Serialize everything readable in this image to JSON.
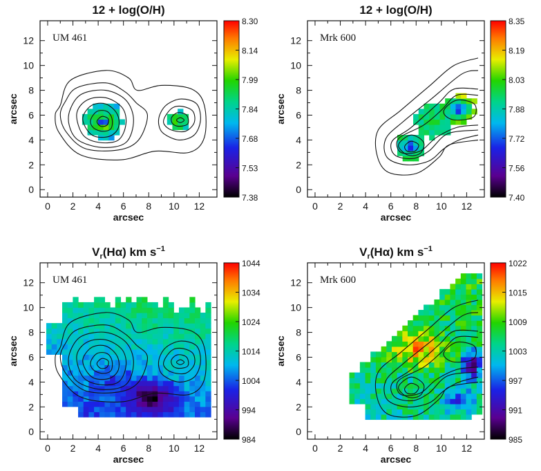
{
  "chart_data": [
    {
      "id": "p1",
      "type": "heatmap",
      "title": "12 + log(O/H)",
      "galaxy": "UM 461",
      "xlabel": "arcsec",
      "ylabel": "arcsec",
      "xlim": [
        -0.6,
        13.4
      ],
      "ylim": [
        -0.6,
        13.6
      ],
      "xticks": [
        "0",
        "2",
        "4",
        "6",
        "8",
        "10",
        "12"
      ],
      "yticks": [
        "0",
        "2",
        "4",
        "6",
        "8",
        "10",
        "12"
      ],
      "colorbar": {
        "min": 7.38,
        "max": 8.3,
        "ticks": [
          "8.30",
          "8.14",
          "7.99",
          "7.84",
          "7.68",
          "7.53",
          "7.38"
        ]
      },
      "blobs": [
        {
          "x": 4.4,
          "y": 5.5,
          "rx": 1.5,
          "ry": 1.3,
          "edge": 7.8,
          "core": 7.38,
          "ring": 7.99
        },
        {
          "x": 10.4,
          "y": 5.5,
          "rx": 0.9,
          "ry": 0.7,
          "edge": 7.84,
          "core": 7.84,
          "ring": 7.99
        }
      ],
      "contours": [
        [
          [
            1.0,
            6.8
          ],
          [
            1.8,
            8.8
          ],
          [
            4.6,
            9.6
          ],
          [
            6.4,
            9.0
          ],
          [
            7.1,
            8.0
          ],
          [
            9.0,
            8.4
          ],
          [
            11.4,
            8.1
          ],
          [
            12.4,
            6.8
          ],
          [
            12.4,
            4.2
          ],
          [
            11.2,
            3.0
          ],
          [
            8.5,
            3.1
          ],
          [
            5.8,
            2.4
          ],
          [
            2.6,
            2.8
          ],
          [
            0.9,
            4.6
          ],
          [
            0.6,
            6.0
          ]
        ],
        [
          [
            1.4,
            7.1
          ],
          [
            2.3,
            8.2
          ],
          [
            4.6,
            8.6
          ],
          [
            6.1,
            7.9
          ],
          [
            7.0,
            7.0
          ],
          [
            7.9,
            6.0
          ],
          [
            7.2,
            4.0
          ],
          [
            5.6,
            3.2
          ],
          [
            3.0,
            3.3
          ],
          [
            1.5,
            4.6
          ],
          [
            1.0,
            6.0
          ]
        ],
        [
          [
            1.8,
            6.5
          ],
          [
            2.7,
            7.7
          ],
          [
            4.6,
            8.0
          ],
          [
            6.2,
            7.2
          ],
          [
            6.8,
            5.6
          ],
          [
            6.2,
            3.8
          ],
          [
            4.3,
            3.4
          ],
          [
            2.4,
            4.0
          ],
          [
            1.7,
            5.2
          ]
        ],
        [
          [
            2.3,
            6.1
          ],
          [
            3.1,
            7.2
          ],
          [
            4.6,
            7.4
          ],
          [
            5.9,
            6.6
          ],
          [
            6.2,
            5.3
          ],
          [
            5.6,
            4.0
          ],
          [
            4.1,
            3.8
          ],
          [
            2.8,
            4.4
          ]
        ],
        [
          [
            2.8,
            5.9
          ],
          [
            3.5,
            6.8
          ],
          [
            4.6,
            6.9
          ],
          [
            5.5,
            6.1
          ],
          [
            5.6,
            5.0
          ],
          [
            4.9,
            4.3
          ],
          [
            3.7,
            4.3
          ],
          [
            3.0,
            5.0
          ]
        ],
        [
          [
            3.4,
            5.6
          ],
          [
            3.9,
            6.3
          ],
          [
            4.7,
            6.3
          ],
          [
            5.1,
            5.7
          ],
          [
            5.0,
            4.9
          ],
          [
            4.3,
            4.7
          ],
          [
            3.6,
            5.0
          ]
        ],
        [
          [
            3.9,
            5.5
          ],
          [
            4.3,
            5.9
          ],
          [
            4.8,
            5.7
          ],
          [
            4.7,
            5.2
          ],
          [
            4.2,
            5.1
          ]
        ],
        [
          [
            8.9,
            6.1
          ],
          [
            9.5,
            6.9
          ],
          [
            10.6,
            7.3
          ],
          [
            11.8,
            6.9
          ],
          [
            12.1,
            5.6
          ],
          [
            11.6,
            4.4
          ],
          [
            10.4,
            4.0
          ],
          [
            9.2,
            4.5
          ],
          [
            8.8,
            5.2
          ]
        ],
        [
          [
            9.3,
            5.9
          ],
          [
            9.9,
            6.6
          ],
          [
            10.7,
            6.7
          ],
          [
            11.5,
            6.3
          ],
          [
            11.6,
            5.4
          ],
          [
            10.9,
            4.7
          ],
          [
            9.8,
            4.8
          ],
          [
            9.2,
            5.3
          ]
        ],
        [
          [
            9.8,
            5.8
          ],
          [
            10.3,
            6.2
          ],
          [
            11.0,
            6.0
          ],
          [
            11.1,
            5.3
          ],
          [
            10.4,
            5.1
          ],
          [
            9.9,
            5.3
          ]
        ],
        [
          [
            10.2,
            5.6
          ],
          [
            10.5,
            5.8
          ],
          [
            10.8,
            5.6
          ],
          [
            10.5,
            5.4
          ]
        ]
      ],
      "open_contours": []
    },
    {
      "id": "p2",
      "type": "heatmap",
      "title": "12 + log(O/H)",
      "galaxy": "Mrk 600",
      "xlabel": "arcsec",
      "ylabel": "arcsec",
      "xlim": [
        -0.6,
        13.4
      ],
      "ylim": [
        -0.6,
        13.6
      ],
      "xticks": [
        "0",
        "2",
        "4",
        "6",
        "8",
        "10",
        "12"
      ],
      "yticks": [
        "0",
        "2",
        "4",
        "6",
        "8",
        "10",
        "12"
      ],
      "colorbar": {
        "min": 7.4,
        "max": 8.35,
        "ticks": [
          "8.35",
          "8.19",
          "8.03",
          "7.88",
          "7.72",
          "7.56",
          "7.40"
        ]
      },
      "blobs": [
        {
          "x": 7.6,
          "y": 3.5,
          "rx": 1.1,
          "ry": 0.9,
          "edge": 7.95,
          "core": 7.45,
          "ring": 7.8
        },
        {
          "x": 11.3,
          "y": 6.5,
          "rx": 1.3,
          "ry": 1.0,
          "edge": 8.05,
          "core": 7.5,
          "ring": 7.8
        },
        {
          "x": 9.4,
          "y": 5.6,
          "rx": 1.3,
          "ry": 1.3,
          "edge": 7.92,
          "core": 8.1,
          "ring": 7.95
        }
      ],
      "contours": [
        [
          [
            6.6,
            3.6
          ],
          [
            7.6,
            4.4
          ],
          [
            8.6,
            3.8
          ],
          [
            8.3,
            2.9
          ],
          [
            7.3,
            2.8
          ]
        ],
        [
          [
            7.1,
            3.5
          ],
          [
            7.6,
            3.9
          ],
          [
            8.2,
            3.6
          ],
          [
            7.9,
            3.1
          ],
          [
            7.3,
            3.1
          ]
        ],
        [
          [
            10.2,
            6.4
          ],
          [
            11.2,
            7.2
          ],
          [
            12.6,
            6.9
          ],
          [
            12.6,
            5.9
          ],
          [
            11.4,
            5.6
          ],
          [
            10.5,
            5.8
          ]
        ]
      ],
      "open_contours": [
        [
          [
            12.9,
            10.6
          ],
          [
            11.0,
            10.0
          ],
          [
            9.0,
            8.3
          ],
          [
            6.8,
            6.4
          ],
          [
            5.0,
            4.8
          ],
          [
            4.9,
            2.8
          ],
          [
            5.8,
            1.4
          ],
          [
            8.0,
            1.3
          ],
          [
            9.8,
            2.6
          ],
          [
            10.6,
            3.6
          ],
          [
            12.9,
            4.0
          ]
        ],
        [
          [
            12.9,
            9.6
          ],
          [
            11.6,
            9.3
          ],
          [
            9.2,
            7.3
          ],
          [
            7.0,
            5.5
          ],
          [
            5.6,
            4.1
          ],
          [
            5.7,
            2.6
          ],
          [
            7.2,
            2.0
          ],
          [
            9.0,
            2.3
          ],
          [
            10.2,
            3.3
          ],
          [
            11.4,
            4.0
          ],
          [
            12.9,
            4.4
          ]
        ],
        [
          [
            12.9,
            8.1
          ],
          [
            11.0,
            8.1
          ],
          [
            9.8,
            7.0
          ],
          [
            7.6,
            5.0
          ],
          [
            6.1,
            3.9
          ],
          [
            6.3,
            2.8
          ],
          [
            7.7,
            2.5
          ],
          [
            9.0,
            3.1
          ],
          [
            10.5,
            4.5
          ],
          [
            12.9,
            4.8
          ]
        ],
        [
          [
            12.9,
            7.6
          ],
          [
            11.2,
            7.6
          ],
          [
            10.0,
            6.4
          ],
          [
            8.6,
            5.2
          ],
          [
            6.6,
            4.1
          ],
          [
            6.8,
            3.0
          ],
          [
            8.3,
            3.1
          ],
          [
            9.6,
            4.2
          ],
          [
            11.2,
            5.0
          ],
          [
            12.9,
            5.2
          ]
        ]
      ]
    },
    {
      "id": "p3",
      "type": "heatmap",
      "title": "V",
      "title_sub": "r",
      "title_after_sub": "(Hα) km s",
      "title_sup": "−1",
      "galaxy": "UM 461",
      "xlabel": "arcsec",
      "ylabel": "arcsec",
      "xlim": [
        -0.6,
        13.4
      ],
      "ylim": [
        -0.6,
        13.6
      ],
      "xticks": [
        "0",
        "2",
        "4",
        "6",
        "8",
        "10",
        "12"
      ],
      "yticks": [
        "0",
        "2",
        "4",
        "6",
        "8",
        "10",
        "12"
      ],
      "colorbar": {
        "min": 984,
        "max": 1044,
        "ticks": [
          "1044",
          "1034",
          "1024",
          "1014",
          "1004",
          "994",
          "984"
        ]
      },
      "contours": "p1",
      "open_contours": []
    },
    {
      "id": "p4",
      "type": "heatmap",
      "title": "V",
      "title_sub": "r",
      "title_after_sub": "(Hα) km s",
      "title_sup": "−1",
      "galaxy": "Mrk 600",
      "xlabel": "arcsec",
      "ylabel": "arcsec",
      "xlim": [
        -0.6,
        13.4
      ],
      "ylim": [
        -0.6,
        13.6
      ],
      "xticks": [
        "0",
        "2",
        "4",
        "6",
        "8",
        "10",
        "12"
      ],
      "yticks": [
        "0",
        "2",
        "4",
        "6",
        "8",
        "10",
        "12"
      ],
      "colorbar": {
        "min": 985,
        "max": 1022,
        "ticks": [
          "1022",
          "1015",
          "1009",
          "1003",
          "997",
          "991",
          "985"
        ]
      },
      "contours": "p2",
      "open_contours": "p2"
    }
  ]
}
